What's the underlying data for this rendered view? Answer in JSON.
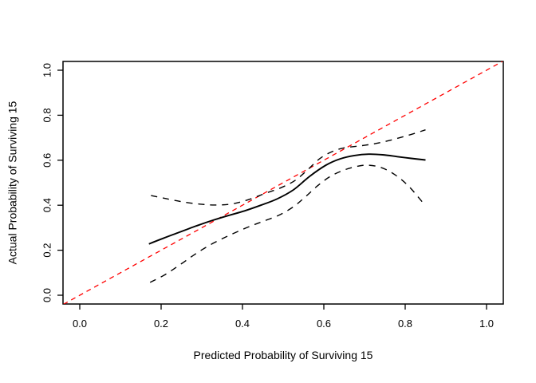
{
  "chart_data": {
    "type": "line",
    "title": "",
    "xlabel": "Predicted Probability of Surviving 15",
    "ylabel": "Actual Probability of Surviving 15",
    "xlim": [
      0,
      1
    ],
    "ylim": [
      0,
      1
    ],
    "axis_expansion": 0.04,
    "grid": false,
    "legend": "none",
    "background": "#ffffff",
    "axis_color": "#000000",
    "x_ticks": [
      0,
      0.2,
      0.4,
      0.6,
      0.8,
      1
    ],
    "x_tick_labels": [
      "0.0",
      "0.2",
      "0.4",
      "0.6",
      "0.8",
      "1.0"
    ],
    "y_ticks": [
      0,
      0.2,
      0.4,
      0.6,
      0.8,
      1
    ],
    "y_tick_labels": [
      "0.0",
      "0.2",
      "0.4",
      "0.6",
      "0.8",
      "1.0"
    ],
    "series": [
      {
        "name": "ideal-diagonal",
        "color": "#FF0000",
        "line": "dashed",
        "points": [
          [
            -0.04,
            -0.04
          ],
          [
            1.04,
            1.04
          ]
        ]
      },
      {
        "name": "calibration-curve",
        "color": "#000000",
        "line": "solid",
        "points": [
          [
            0.17,
            0.228
          ],
          [
            0.205,
            0.253
          ],
          [
            0.245,
            0.28
          ],
          [
            0.285,
            0.307
          ],
          [
            0.325,
            0.332
          ],
          [
            0.365,
            0.354
          ],
          [
            0.405,
            0.375
          ],
          [
            0.445,
            0.4
          ],
          [
            0.485,
            0.428
          ],
          [
            0.525,
            0.468
          ],
          [
            0.565,
            0.528
          ],
          [
            0.605,
            0.578
          ],
          [
            0.64,
            0.606
          ],
          [
            0.675,
            0.621
          ],
          [
            0.71,
            0.627
          ],
          [
            0.745,
            0.624
          ],
          [
            0.78,
            0.616
          ],
          [
            0.815,
            0.608
          ],
          [
            0.85,
            0.601
          ]
        ]
      },
      {
        "name": "upper-confidence-band",
        "color": "#000000",
        "line": "dashed",
        "points": [
          [
            0.175,
            0.443
          ],
          [
            0.21,
            0.43
          ],
          [
            0.25,
            0.416
          ],
          [
            0.295,
            0.405
          ],
          [
            0.335,
            0.401
          ],
          [
            0.375,
            0.406
          ],
          [
            0.415,
            0.425
          ],
          [
            0.455,
            0.452
          ],
          [
            0.495,
            0.478
          ],
          [
            0.53,
            0.511
          ],
          [
            0.56,
            0.557
          ],
          [
            0.59,
            0.607
          ],
          [
            0.62,
            0.638
          ],
          [
            0.65,
            0.655
          ],
          [
            0.69,
            0.664
          ],
          [
            0.73,
            0.675
          ],
          [
            0.77,
            0.692
          ],
          [
            0.81,
            0.712
          ],
          [
            0.85,
            0.735
          ]
        ]
      },
      {
        "name": "lower-confidence-band",
        "color": "#000000",
        "line": "dashed",
        "points": [
          [
            0.173,
            0.057
          ],
          [
            0.21,
            0.092
          ],
          [
            0.25,
            0.14
          ],
          [
            0.29,
            0.19
          ],
          [
            0.33,
            0.233
          ],
          [
            0.37,
            0.268
          ],
          [
            0.41,
            0.3
          ],
          [
            0.45,
            0.328
          ],
          [
            0.49,
            0.356
          ],
          [
            0.525,
            0.393
          ],
          [
            0.555,
            0.438
          ],
          [
            0.585,
            0.487
          ],
          [
            0.615,
            0.527
          ],
          [
            0.645,
            0.553
          ],
          [
            0.675,
            0.57
          ],
          [
            0.705,
            0.578
          ],
          [
            0.74,
            0.568
          ],
          [
            0.775,
            0.535
          ],
          [
            0.81,
            0.482
          ],
          [
            0.85,
            0.397
          ]
        ]
      }
    ]
  }
}
